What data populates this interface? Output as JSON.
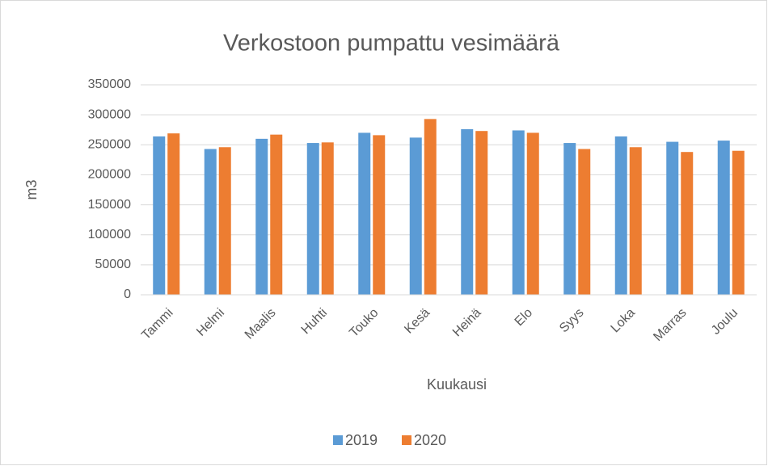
{
  "chart_data": {
    "type": "bar",
    "title": "Verkostoon pumpattu vesimäärä",
    "x_label": "Kuukausi",
    "y_label": "m3",
    "categories": [
      "Tammi",
      "Helmi",
      "Maalis",
      "Huhti",
      "Touko",
      "Kesä",
      "Heinä",
      "Elo",
      "Syys",
      "Loka",
      "Marras",
      "Joulu"
    ],
    "series": [
      {
        "name": "2019",
        "color": "#5b9bd5",
        "values": [
          264000,
          243000,
          260000,
          253000,
          270000,
          262000,
          276000,
          274000,
          253000,
          264000,
          255000,
          257000
        ]
      },
      {
        "name": "2020",
        "color": "#ed7d31",
        "values": [
          269000,
          246000,
          267000,
          254000,
          266000,
          293000,
          273000,
          270000,
          243000,
          246000,
          238000,
          240000
        ]
      }
    ],
    "ylim": [
      0,
      350000
    ],
    "yticks": [
      0,
      50000,
      100000,
      150000,
      200000,
      250000,
      300000,
      350000
    ],
    "grid": true,
    "legend": "bottom"
  }
}
